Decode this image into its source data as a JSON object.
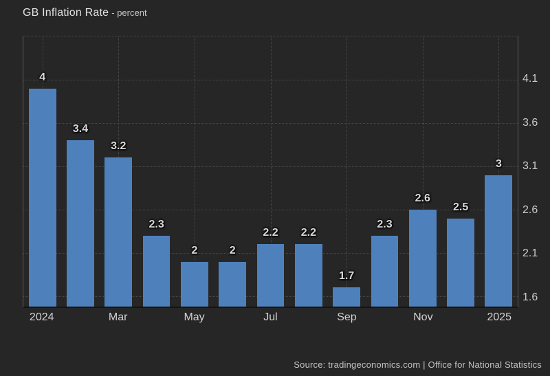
{
  "header": {
    "title": "GB Inflation Rate",
    "subtitle": "- percent"
  },
  "footer": {
    "source": "Source: tradingeconomics.com | Office for National Statistics"
  },
  "chart_data": {
    "type": "bar",
    "title": "GB Inflation Rate",
    "ylabel": "percent",
    "categories": [
      "Jan 2024",
      "Feb 2024",
      "Mar 2024",
      "Apr 2024",
      "May 2024",
      "Jun 2024",
      "Jul 2024",
      "Aug 2024",
      "Sep 2024",
      "Oct 2024",
      "Nov 2024",
      "Dec 2024",
      "Jan 2025"
    ],
    "values": [
      4,
      3.4,
      3.2,
      2.3,
      2,
      2,
      2.2,
      2.2,
      1.7,
      2.3,
      2.6,
      2.5,
      3
    ],
    "bar_labels": [
      "4",
      "3.4",
      "3.2",
      "2.3",
      "2",
      "2",
      "2.2",
      "2.2",
      "1.7",
      "2.3",
      "2.6",
      "2.5",
      "3"
    ],
    "x_ticks": [
      {
        "index": 0,
        "label": "2024"
      },
      {
        "index": 2,
        "label": "Mar"
      },
      {
        "index": 4,
        "label": "May"
      },
      {
        "index": 6,
        "label": "Jul"
      },
      {
        "index": 8,
        "label": "Sep"
      },
      {
        "index": 10,
        "label": "Nov"
      },
      {
        "index": 12,
        "label": "2025"
      }
    ],
    "y_ticks": [
      "4.1",
      "3.6",
      "3.1",
      "2.6",
      "2.1",
      "1.6"
    ],
    "y_axis_side": "right",
    "ylim": [
      1.48,
      4.6
    ],
    "grid": "dotted",
    "legend": "none",
    "colors": {
      "background": "#262626",
      "bar": "#4e81bc",
      "grid": "#4a4a4a",
      "axis_text": "#cccccc",
      "value_label": "#d9d9d9",
      "plot_border": "#5c5c5c",
      "baseline": "#141414"
    }
  }
}
